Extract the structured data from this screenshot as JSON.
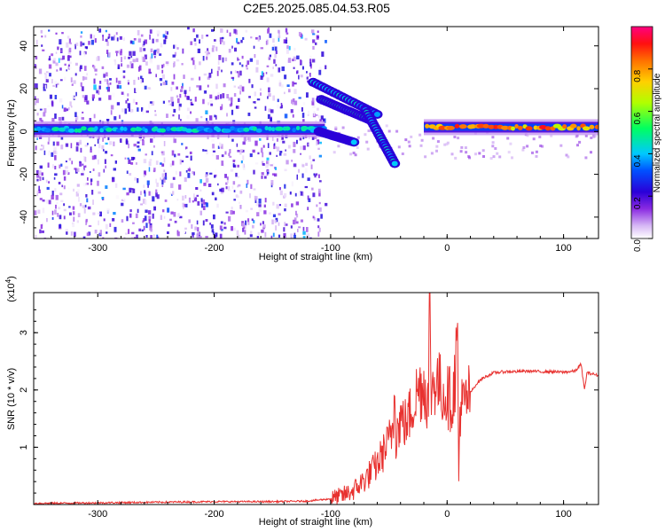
{
  "title": "C2E5.2025.085.04.53.R05",
  "chart_data": [
    {
      "type": "heatmap",
      "xlabel": "Height of straight line (km)",
      "ylabel": "Frequency (Hz)",
      "xlim": [
        -355,
        130
      ],
      "ylim": [
        -50,
        49
      ],
      "x_ticks": [
        -300,
        -200,
        -100,
        0,
        100
      ],
      "x_tick_labels": [
        "-300",
        "-200",
        "-100",
        "0",
        "100"
      ],
      "y_ticks": [
        -40,
        -20,
        0,
        20,
        40
      ],
      "y_tick_labels": [
        "-40",
        "-20",
        "0",
        "20",
        "40"
      ],
      "colorbar": {
        "label": "Normalized spectral amplitude",
        "range": [
          0,
          1
        ],
        "ticks": [
          0.0,
          0.2,
          0.4,
          0.6,
          0.8
        ],
        "tick_labels": [
          "0.0",
          "0.2",
          "0.4",
          "0.6",
          "0.8"
        ],
        "colors": [
          "#ffffff",
          "#b98ee8",
          "#5500cc",
          "#0000ff",
          "#00c8ff",
          "#00ff40",
          "#ffff00",
          "#ff8000",
          "#ff0000",
          "#ff0080"
        ]
      },
      "main_band": {
        "frequency_hz": 2,
        "segments": [
          {
            "x_from": -355,
            "x_to": -105,
            "freq_hz": 1,
            "amplitude": 0.45
          },
          {
            "x_from": -20,
            "x_to": 130,
            "freq_hz": 2,
            "amplitude": 0.85
          }
        ]
      },
      "tracks": [
        {
          "x_from": -115,
          "x_to": -60,
          "freq_from_hz": 23,
          "freq_to_hz": 8,
          "amplitude": 0.4
        },
        {
          "x_from": -108,
          "x_to": -65,
          "freq_from_hz": 15,
          "freq_to_hz": 5,
          "amplitude": 0.45
        },
        {
          "x_from": -70,
          "x_to": -45,
          "freq_from_hz": 10,
          "freq_to_hz": -15,
          "amplitude": 0.4
        },
        {
          "x_from": -110,
          "x_to": -80,
          "freq_from_hz": 0,
          "freq_to_hz": -5,
          "amplitude": 0.35
        }
      ],
      "noise_region": {
        "x_from": -355,
        "x_to": -105,
        "amplitude_max": 0.25
      }
    },
    {
      "type": "line",
      "xlabel": "Height of straight line (km)",
      "ylabel": "SNR (10 * v/v)",
      "y_multiplier": "(x10",
      "y_multiplier_exp": "4",
      "y_multiplier_close": ")",
      "xlim": [
        -355,
        130
      ],
      "ylim": [
        0,
        3.7
      ],
      "x_ticks": [
        -300,
        -200,
        -100,
        0,
        100
      ],
      "x_tick_labels": [
        "-300",
        "-200",
        "-100",
        "0",
        "100"
      ],
      "y_ticks": [
        1,
        2,
        3
      ],
      "y_tick_labels": [
        "1",
        "2",
        "3"
      ],
      "color": "#e8312f",
      "series": [
        {
          "x": [
            -355,
            -300,
            -250,
            -200,
            -150,
            -120,
            -100,
            -90,
            -80,
            -70,
            -60,
            -50,
            -46,
            -45,
            -44,
            -40,
            -35,
            -30,
            -25,
            -20,
            -16,
            -15,
            -14,
            -10,
            -5,
            0,
            5,
            9,
            10,
            11,
            15,
            20,
            25,
            30,
            40,
            50,
            60,
            70,
            80,
            90,
            100,
            110,
            115,
            118,
            120,
            125,
            130
          ],
          "y": [
            0.02,
            0.03,
            0.04,
            0.05,
            0.05,
            0.06,
            0.1,
            0.15,
            0.25,
            0.45,
            0.7,
            1.1,
            1.4,
            2.5,
            1.2,
            1.5,
            1.4,
            1.7,
            2.0,
            2.1,
            1.8,
            3.65,
            2.0,
            2.2,
            2.0,
            1.9,
            1.8,
            2.9,
            0.4,
            1.7,
            1.75,
            1.95,
            2.1,
            2.2,
            2.3,
            2.32,
            2.32,
            2.33,
            2.32,
            2.32,
            2.31,
            2.33,
            2.45,
            2.0,
            2.3,
            2.28,
            2.25
          ]
        }
      ]
    }
  ]
}
